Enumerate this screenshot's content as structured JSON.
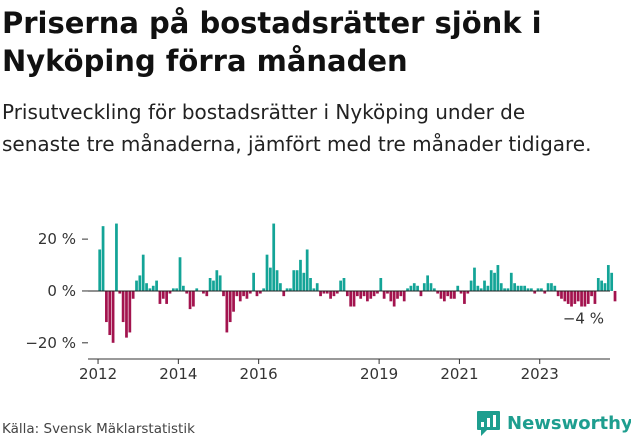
{
  "title": "Priserna på bostadsrätter sjönk i Nyköping förra månaden",
  "subtitle": "Prisutveckling för bostadsrätter i Nyköping under de senaste tre månaderna, jämfört med tre månader tidigare.",
  "source": "Källa: Svensk Mäklarstatistik",
  "brand": {
    "name": "Newsworthy",
    "icon": "newsworthy-logo-icon"
  },
  "colors": {
    "positive": "#13a497",
    "negative": "#a3134e",
    "axis": "#333333",
    "brand": "#1e9e8f"
  },
  "chart_data": {
    "type": "bar",
    "title": "",
    "xlabel": "",
    "ylabel": "",
    "ylim": [
      -22,
      32
    ],
    "grid": false,
    "legend": "none",
    "y_ticks": [
      {
        "value": 20,
        "label": "20 %"
      },
      {
        "value": 0,
        "label": "0 %"
      },
      {
        "value": -20,
        "label": "−20 %"
      }
    ],
    "x_ticks": [
      "2012",
      "2014",
      "2016",
      "2019",
      "2021",
      "2023"
    ],
    "annotation": {
      "label": "−4 %",
      "value": -4
    },
    "start_period": "2012-01",
    "x_range": [
      "2011-10",
      "2024-10"
    ],
    "values": [
      16,
      25,
      -12,
      -17,
      -20,
      26,
      -1,
      -12,
      -18,
      -16,
      -3,
      4,
      6,
      14,
      3,
      1,
      2,
      4,
      -5,
      -3,
      -5,
      -1,
      1,
      1,
      13,
      2,
      -1,
      -7,
      -6,
      1,
      0,
      -1,
      -2,
      5,
      4,
      8,
      6,
      -2,
      -16,
      -12,
      -8,
      -2,
      -4,
      -2,
      -3,
      -1,
      7,
      -2,
      -1,
      1,
      14,
      9,
      26,
      8,
      3,
      -2,
      1,
      1,
      8,
      8,
      12,
      7,
      16,
      5,
      1,
      3,
      -2,
      -1,
      -1,
      -3,
      -2,
      -1,
      4,
      5,
      -2,
      -6,
      -6,
      -2,
      -3,
      -2,
      -4,
      -3,
      -2,
      -1,
      5,
      -3,
      -1,
      -4,
      -6,
      -3,
      -2,
      -4,
      1,
      2,
      3,
      2,
      -2,
      3,
      6,
      3,
      1,
      -1,
      -3,
      -4,
      -2,
      -3,
      -3,
      2,
      -1,
      -5,
      -1,
      4,
      9,
      2,
      1,
      4,
      2,
      8,
      7,
      10,
      3,
      1,
      1,
      7,
      3,
      2,
      2,
      2,
      1,
      1,
      -1,
      1,
      1,
      -1,
      3,
      3,
      2,
      -2,
      -3,
      -4,
      -5,
      -6,
      -5,
      -4,
      -6,
      -6,
      -5,
      -2,
      -5,
      5,
      4,
      3,
      10,
      7,
      -4
    ]
  }
}
